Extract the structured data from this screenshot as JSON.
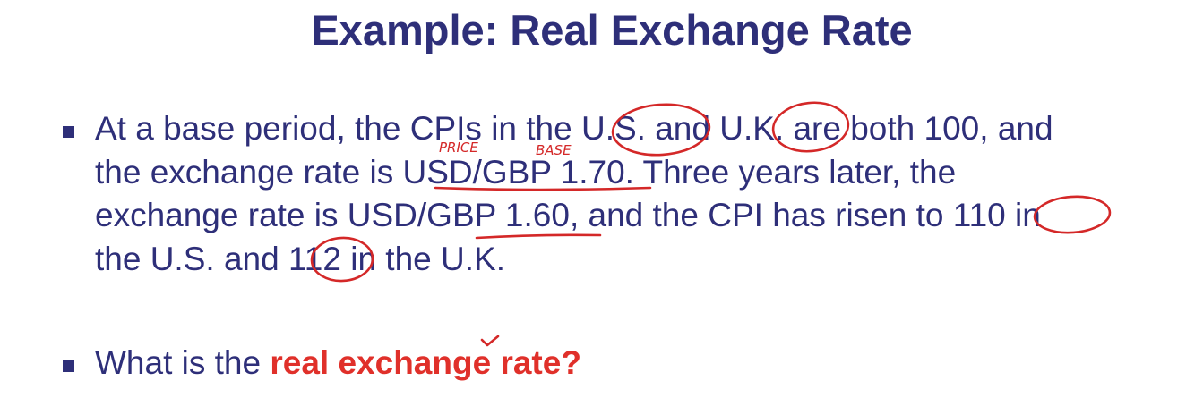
{
  "slide": {
    "title": "Example: Real Exchange Rate",
    "bullet1": {
      "line1": "At a base period, the CPIs in the U.S. and U.K. are both 100, and",
      "line2": "the exchange rate is USD/GBP 1.70. Three years later, the",
      "line3": "exchange rate is USD/GBP 1.60, and the CPI has risen to 110 in",
      "line4": "the U.S. and 112 in the U.K."
    },
    "bullet2": {
      "prefix": "What is the ",
      "emphasis": "real exchange rate?"
    },
    "handwriting": {
      "price_note": "PRICE",
      "base_note": "BASE"
    }
  },
  "colors": {
    "text": "#2e2f79",
    "emphasis": "#e0302a",
    "ink": "#d42828"
  }
}
